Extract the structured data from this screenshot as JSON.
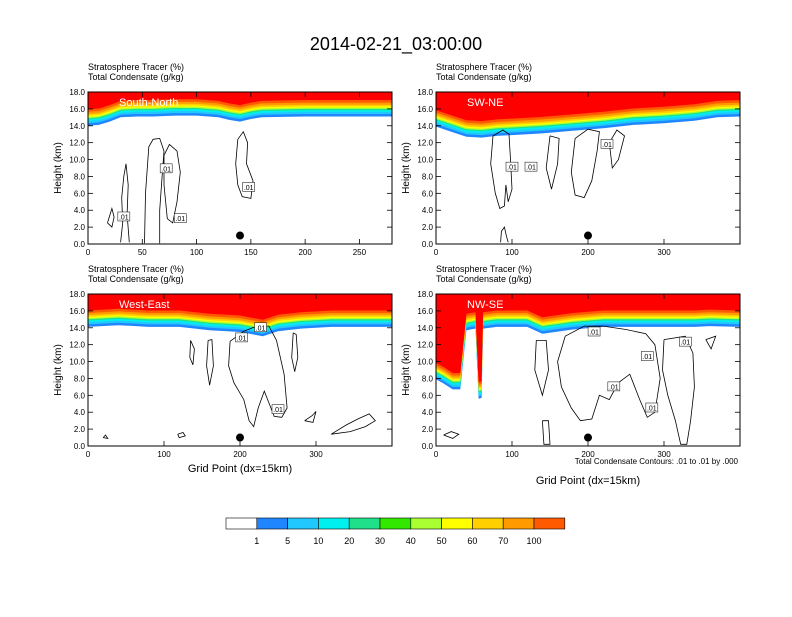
{
  "title": "2014-02-21_03:00:00",
  "footnote": "Total Condensate Contours: .01 to .01 by .000",
  "colors": {
    "tracer_levels": [
      "#ffffff",
      "#1f86ff",
      "#20c8ff",
      "#00f0f0",
      "#21e08a",
      "#33e800",
      "#aaff33",
      "#ffff00",
      "#ffcf00",
      "#ff9a00",
      "#ff5a00",
      "#ff0000"
    ],
    "contour": "#000000",
    "marker": "#000000"
  },
  "colorbar": {
    "labels": [
      "1",
      "5",
      "10",
      "20",
      "30",
      "40",
      "50",
      "60",
      "70",
      "100"
    ]
  },
  "chart_data": [
    {
      "type": "heatmap",
      "panel_label": "South-North",
      "subtitle_1": "Stratosphere Tracer   (%)",
      "subtitle_2": "Total Condensate   (g/kg)",
      "xlabel": "",
      "ylabel": "Height (km)",
      "xlim": [
        0,
        280
      ],
      "ylim": [
        0,
        18
      ],
      "xticks": [
        0,
        50,
        100,
        150,
        200,
        250
      ],
      "yticks": [
        "0.0",
        "2.0",
        "4.0",
        "6.0",
        "8.0",
        "10.0",
        "12.0",
        "14.0",
        "16.0",
        "18.0"
      ],
      "tracer_base_km": [
        [
          0,
          14.9
        ],
        [
          10,
          15.0
        ],
        [
          20,
          15.4
        ],
        [
          30,
          15.9
        ],
        [
          45,
          16.0
        ],
        [
          60,
          16.0
        ],
        [
          80,
          16.1
        ],
        [
          100,
          16.1
        ],
        [
          120,
          15.9
        ],
        [
          130,
          15.6
        ],
        [
          140,
          15.4
        ],
        [
          150,
          15.7
        ],
        [
          160,
          15.9
        ],
        [
          200,
          16.0
        ],
        [
          240,
          16.0
        ],
        [
          280,
          16.0
        ]
      ],
      "marker": [
        140,
        1.0
      ],
      "contour_labels": [
        {
          "text": ".01",
          "x": 33,
          "y": 3.2
        },
        {
          "text": ".01",
          "x": 72,
          "y": 8.9
        },
        {
          "text": ".01",
          "x": 85,
          "y": 3.0
        },
        {
          "text": ".01",
          "x": 148,
          "y": 6.7
        }
      ],
      "contours": [
        [
          [
            30,
            0.2
          ],
          [
            32,
            2.5
          ],
          [
            31,
            5.5
          ],
          [
            33,
            8.0
          ],
          [
            35,
            9.5
          ],
          [
            37,
            7.0
          ],
          [
            36,
            3.5
          ],
          [
            38,
            0.2
          ]
        ],
        [
          [
            52,
            0.1
          ],
          [
            53,
            6
          ],
          [
            56,
            11.5
          ],
          [
            60,
            12.4
          ],
          [
            66,
            12.5
          ],
          [
            70,
            11.0
          ],
          [
            68,
            7.5
          ],
          [
            66,
            4
          ],
          [
            66,
            0.1
          ]
        ],
        [
          [
            70,
            10.5
          ],
          [
            70,
            7
          ],
          [
            73,
            3
          ],
          [
            78,
            2.5
          ],
          [
            82,
            5
          ],
          [
            85,
            8.5
          ],
          [
            82,
            11
          ],
          [
            75,
            11.8
          ],
          [
            70,
            10.5
          ]
        ],
        [
          [
            138,
            12.4
          ],
          [
            136,
            9.5
          ],
          [
            138,
            7
          ],
          [
            142,
            5.6
          ],
          [
            150,
            5.4
          ],
          [
            152,
            7.5
          ],
          [
            146,
            9.5
          ],
          [
            147,
            12.0
          ],
          [
            143,
            13.3
          ],
          [
            138,
            12.4
          ]
        ],
        [
          [
            18,
            2.5
          ],
          [
            22,
            4.2
          ],
          [
            24,
            3.2
          ],
          [
            22,
            2.0
          ],
          [
            18,
            2.5
          ]
        ]
      ]
    },
    {
      "type": "heatmap",
      "panel_label": "SW-NE",
      "subtitle_1": "Stratosphere Tracer   (%)",
      "subtitle_2": "Total Condensate   (g/kg)",
      "xlabel": "",
      "ylabel": "Height (km)",
      "xlim": [
        0,
        400
      ],
      "ylim": [
        0,
        18
      ],
      "xticks": [
        0,
        100,
        200,
        300
      ],
      "yticks": [
        "0.0",
        "2.0",
        "4.0",
        "6.0",
        "8.0",
        "10.0",
        "12.0",
        "14.0",
        "16.0",
        "18.0"
      ],
      "tracer_base_km": [
        [
          0,
          14.8
        ],
        [
          20,
          14.2
        ],
        [
          40,
          13.6
        ],
        [
          60,
          13.5
        ],
        [
          80,
          13.7
        ],
        [
          100,
          13.8
        ],
        [
          140,
          14.0
        ],
        [
          180,
          14.3
        ],
        [
          220,
          14.6
        ],
        [
          260,
          15.0
        ],
        [
          300,
          15.2
        ],
        [
          340,
          15.5
        ],
        [
          370,
          15.9
        ],
        [
          400,
          16.0
        ]
      ],
      "marker": [
        200,
        1.0
      ],
      "contour_labels": [
        {
          "text": ".01",
          "x": 100,
          "y": 9.1
        },
        {
          "text": ".01",
          "x": 125,
          "y": 9.1
        },
        {
          "text": ".01",
          "x": 225,
          "y": 11.8
        }
      ],
      "contours": [
        [
          [
            75,
            12.8
          ],
          [
            72,
            9.5
          ],
          [
            78,
            6
          ],
          [
            84,
            4.2
          ],
          [
            90,
            4.5
          ],
          [
            92,
            7
          ],
          [
            95,
            5
          ],
          [
            100,
            6.5
          ],
          [
            98,
            10
          ],
          [
            96,
            13
          ],
          [
            88,
            13.5
          ],
          [
            75,
            12.8
          ]
        ],
        [
          [
            150,
            12.8
          ],
          [
            145,
            9
          ],
          [
            152,
            6.5
          ],
          [
            160,
            9.5
          ],
          [
            162,
            12.5
          ],
          [
            150,
            12.8
          ]
        ],
        [
          [
            183,
            12.5
          ],
          [
            178,
            8.5
          ],
          [
            183,
            5.8
          ],
          [
            195,
            5.5
          ],
          [
            205,
            7.5
          ],
          [
            212,
            11
          ],
          [
            215,
            13.3
          ],
          [
            200,
            13.6
          ],
          [
            183,
            12.5
          ]
        ],
        [
          [
            228,
            12
          ],
          [
            232,
            9
          ],
          [
            240,
            10
          ],
          [
            248,
            12.8
          ],
          [
            238,
            13.5
          ],
          [
            228,
            12
          ]
        ],
        [
          [
            85,
            0.2
          ],
          [
            86,
            1.5
          ],
          [
            90,
            2.0
          ],
          [
            93,
            0.8
          ],
          [
            95,
            0.2
          ]
        ]
      ]
    },
    {
      "type": "heatmap",
      "panel_label": "West-East",
      "subtitle_1": "Stratosphere Tracer   (%)",
      "subtitle_2": "Total Condensate   (g/kg)",
      "xlabel": "Grid Point (dx=15km)",
      "ylabel": "Height (km)",
      "xlim": [
        0,
        400
      ],
      "ylim": [
        0,
        18
      ],
      "xticks": [
        0,
        100,
        200,
        300
      ],
      "yticks": [
        "0.0",
        "2.0",
        "4.0",
        "6.0",
        "8.0",
        "10.0",
        "12.0",
        "14.0",
        "16.0",
        "18.0"
      ],
      "tracer_base_km": [
        [
          0,
          15.0
        ],
        [
          40,
          15.2
        ],
        [
          80,
          15.0
        ],
        [
          120,
          15.0
        ],
        [
          160,
          14.6
        ],
        [
          200,
          14.4
        ],
        [
          230,
          13.9
        ],
        [
          250,
          14.5
        ],
        [
          280,
          14.8
        ],
        [
          320,
          15.0
        ],
        [
          360,
          15.0
        ],
        [
          400,
          15.0
        ]
      ],
      "marker": [
        200,
        1.0
      ],
      "contour_labels": [
        {
          "text": ".01",
          "x": 202,
          "y": 12.8
        },
        {
          "text": ".01",
          "x": 227,
          "y": 14.0
        },
        {
          "text": ".01",
          "x": 250,
          "y": 4.3
        }
      ],
      "contours": [
        [
          [
            187,
            12.4
          ],
          [
            185,
            9.5
          ],
          [
            192,
            7.5
          ],
          [
            205,
            5.5
          ],
          [
            212,
            3
          ],
          [
            218,
            2.3
          ],
          [
            224,
            4.5
          ],
          [
            232,
            6.5
          ],
          [
            245,
            3.5
          ],
          [
            255,
            3.4
          ],
          [
            262,
            4.5
          ],
          [
            258,
            8.5
          ],
          [
            248,
            12.5
          ],
          [
            238,
            14.2
          ],
          [
            222,
            14.2
          ],
          [
            205,
            13.6
          ],
          [
            187,
            12.4
          ]
        ],
        [
          [
            135,
            12.5
          ],
          [
            134,
            10.5
          ],
          [
            138,
            9.6
          ],
          [
            140,
            11.5
          ],
          [
            135,
            12.5
          ]
        ],
        [
          [
            158,
            12.5
          ],
          [
            156,
            9.5
          ],
          [
            160,
            7.2
          ],
          [
            165,
            9.5
          ],
          [
            163,
            12.6
          ],
          [
            158,
            12.5
          ]
        ],
        [
          [
            270,
            13.4
          ],
          [
            268,
            10.5
          ],
          [
            272,
            8.8
          ],
          [
            276,
            10.5
          ],
          [
            274,
            13.2
          ],
          [
            270,
            13.4
          ]
        ],
        [
          [
            285,
            3
          ],
          [
            295,
            3.6
          ],
          [
            300,
            4.1
          ],
          [
            296,
            2.8
          ],
          [
            285,
            3
          ]
        ],
        [
          [
            320,
            1.4
          ],
          [
            340,
            2.5
          ],
          [
            355,
            3.2
          ],
          [
            370,
            3.8
          ],
          [
            378,
            3.0
          ],
          [
            365,
            2.3
          ],
          [
            345,
            1.7
          ],
          [
            320,
            1.4
          ]
        ],
        [
          [
            118,
            1.4
          ],
          [
            125,
            1.6
          ],
          [
            128,
            1.2
          ],
          [
            120,
            1.0
          ],
          [
            118,
            1.4
          ]
        ],
        [
          [
            20,
            1.0
          ],
          [
            23,
            1.3
          ],
          [
            26,
            0.9
          ],
          [
            20,
            1.0
          ]
        ]
      ]
    },
    {
      "type": "heatmap",
      "panel_label": "NW-SE",
      "subtitle_1": "Stratosphere Tracer   (%)",
      "subtitle_2": "Total Condensate   (g/kg)",
      "xlabel": "Grid Point (dx=15km)",
      "ylabel": "Height (km)",
      "xlim": [
        0,
        400
      ],
      "ylim": [
        0,
        18
      ],
      "xticks": [
        0,
        100,
        200,
        300
      ],
      "yticks": [
        "0.0",
        "2.0",
        "4.0",
        "6.0",
        "8.0",
        "10.0",
        "12.0",
        "14.0",
        "16.0",
        "18.0"
      ],
      "tracer_base_km": [
        [
          0,
          8.8
        ],
        [
          10,
          8.3
        ],
        [
          22,
          7.6
        ],
        [
          32,
          7.6
        ],
        [
          40,
          14.6
        ],
        [
          52,
          14.8
        ],
        [
          56,
          6.5
        ],
        [
          60,
          6.6
        ],
        [
          62,
          14.8
        ],
        [
          80,
          15.0
        ],
        [
          120,
          15.0
        ],
        [
          140,
          14.2
        ],
        [
          180,
          14.7
        ],
        [
          220,
          15.0
        ],
        [
          260,
          15.0
        ],
        [
          300,
          15.0
        ],
        [
          340,
          15.0
        ],
        [
          360,
          15.1
        ],
        [
          400,
          15.0
        ]
      ],
      "marker": [
        200,
        1.0
      ],
      "contour_labels": [
        {
          "text": ".01",
          "x": 208,
          "y": 13.5
        },
        {
          "text": ".01",
          "x": 234,
          "y": 7.0
        },
        {
          "text": ".01",
          "x": 278,
          "y": 10.6
        },
        {
          "text": ".01",
          "x": 284,
          "y": 4.5
        },
        {
          "text": ".01",
          "x": 328,
          "y": 12.3
        }
      ],
      "contours": [
        [
          [
            170,
            13
          ],
          [
            160,
            10
          ],
          [
            165,
            7
          ],
          [
            178,
            4.5
          ],
          [
            190,
            3
          ],
          [
            205,
            3.2
          ],
          [
            215,
            6
          ],
          [
            228,
            5.5
          ],
          [
            240,
            7.5
          ],
          [
            255,
            8.5
          ],
          [
            268,
            5.5
          ],
          [
            278,
            3.4
          ],
          [
            288,
            4
          ],
          [
            295,
            8
          ],
          [
            288,
            12
          ],
          [
            276,
            13.3
          ],
          [
            250,
            13.8
          ],
          [
            220,
            14.2
          ],
          [
            195,
            14.2
          ],
          [
            170,
            13
          ]
        ],
        [
          [
            132,
            12.5
          ],
          [
            130,
            9
          ],
          [
            140,
            6
          ],
          [
            148,
            9
          ],
          [
            145,
            12.5
          ],
          [
            132,
            12.5
          ]
        ],
        [
          [
            300,
            12.6
          ],
          [
            298,
            9
          ],
          [
            305,
            6
          ],
          [
            315,
            3
          ],
          [
            322,
            0.2
          ],
          [
            330,
            0.2
          ],
          [
            335,
            3
          ],
          [
            340,
            7
          ],
          [
            338,
            11
          ],
          [
            328,
            13
          ],
          [
            300,
            12.6
          ]
        ],
        [
          [
            140,
            3
          ],
          [
            142,
            0.2
          ],
          [
            150,
            0.2
          ],
          [
            148,
            3
          ],
          [
            140,
            3
          ]
        ],
        [
          [
            10,
            1.3
          ],
          [
            20,
            1.7
          ],
          [
            30,
            1.4
          ],
          [
            22,
            0.9
          ],
          [
            10,
            1.3
          ]
        ],
        [
          [
            355,
            12.6
          ],
          [
            362,
            11.5
          ],
          [
            368,
            13.0
          ],
          [
            355,
            12.6
          ]
        ]
      ]
    }
  ]
}
